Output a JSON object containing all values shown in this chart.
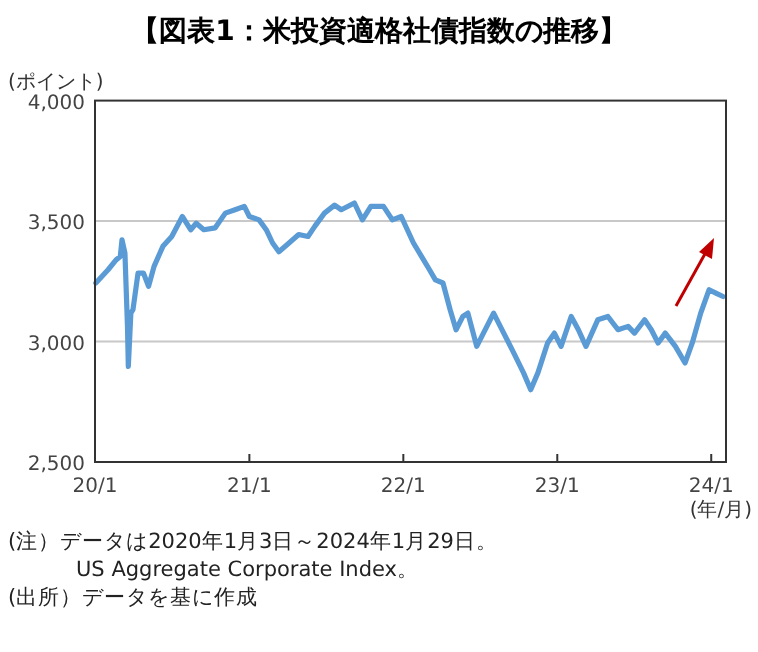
{
  "chart_data": {
    "type": "line",
    "title": "【図表1：米投資適格社債指数の推移】",
    "ylabel": "(ポイント)",
    "xlabel": "(年/月)",
    "annotations": [
      "(注）データは2020年1月3日～2024年1月29日。",
      "US Aggregate Corporate Index。",
      "(出所）データを基に作成"
    ],
    "x": [
      "2020-01-03",
      "2020-02-01",
      "2020-02-20",
      "2020-03-01",
      "2020-03-05",
      "2020-03-12",
      "2020-03-18",
      "2020-03-20",
      "2020-03-26",
      "2020-03-31",
      "2020-04-12",
      "2020-04-25",
      "2020-05-07",
      "2020-05-20",
      "2020-06-10",
      "2020-07-01",
      "2020-07-26",
      "2020-08-05",
      "2020-08-15",
      "2020-08-28",
      "2020-09-15",
      "2020-10-12",
      "2020-11-05",
      "2020-11-28",
      "2020-12-20",
      "2021-01-01",
      "2021-01-24",
      "2021-02-10",
      "2021-02-25",
      "2021-03-12",
      "2021-04-05",
      "2021-04-28",
      "2021-05-20",
      "2021-06-05",
      "2021-06-28",
      "2021-07-22",
      "2021-08-07",
      "2021-09-07",
      "2021-09-26",
      "2021-10-16",
      "2021-11-15",
      "2021-12-06",
      "2021-12-27",
      "2022-01-25",
      "2022-02-18",
      "2022-03-04",
      "2022-03-18",
      "2022-04-05",
      "2022-04-22",
      "2022-05-06",
      "2022-05-22",
      "2022-06-03",
      "2022-06-24",
      "2022-07-10",
      "2022-08-03",
      "2022-08-27",
      "2022-09-20",
      "2022-10-13",
      "2022-10-30",
      "2022-11-16",
      "2022-12-09",
      "2022-12-25",
      "2023-01-10",
      "2023-02-03",
      "2023-02-20",
      "2023-03-10",
      "2023-04-07",
      "2023-05-01",
      "2023-05-25",
      "2023-06-18",
      "2023-07-03",
      "2023-07-27",
      "2023-08-12",
      "2023-08-28",
      "2023-09-14",
      "2023-10-08",
      "2023-10-31",
      "2023-11-17",
      "2023-12-07",
      "2023-12-27",
      "2024-01-12",
      "2024-01-29"
    ],
    "series": [
      {
        "color": "#5b9bd5",
        "values": [
          3243,
          3298,
          3339,
          3353,
          3422,
          3367,
          3063,
          2897,
          3118,
          3132,
          3284,
          3284,
          3229,
          3312,
          3395,
          3436,
          3519,
          3491,
          3464,
          3491,
          3464,
          3472,
          3533,
          3547,
          3561,
          3519,
          3505,
          3464,
          3409,
          3373,
          3409,
          3444,
          3436,
          3478,
          3533,
          3566,
          3547,
          3575,
          3505,
          3561,
          3561,
          3505,
          3519,
          3409,
          3339,
          3298,
          3256,
          3243,
          3132,
          3049,
          3104,
          3118,
          2980,
          3035,
          3118,
          3035,
          2952,
          2870,
          2800,
          2870,
          2994,
          3035,
          2980,
          3104,
          3049,
          2980,
          3090,
          3104,
          3049,
          3063,
          3035,
          3090,
          3049,
          2994,
          3035,
          2980,
          2911,
          2994,
          3118,
          3215,
          3201,
          3187
        ]
      }
    ],
    "xlim": [
      "2020-01-01",
      "2024-02-05"
    ],
    "xticks": [
      {
        "value": "2020-01-01",
        "label": "20/1"
      },
      {
        "value": "2021-01-01",
        "label": "21/1"
      },
      {
        "value": "2022-01-01",
        "label": "22/1"
      },
      {
        "value": "2023-01-01",
        "label": "23/1"
      },
      {
        "value": "2024-01-01",
        "label": "24/1"
      }
    ],
    "ylim": [
      2500,
      4000
    ],
    "yticks": [
      {
        "value": 2500,
        "label": "2,500"
      },
      {
        "value": 3000,
        "label": "3,000"
      },
      {
        "value": 3500,
        "label": "3,500"
      },
      {
        "value": 4000,
        "label": "4,000"
      }
    ],
    "grid": "y"
  }
}
